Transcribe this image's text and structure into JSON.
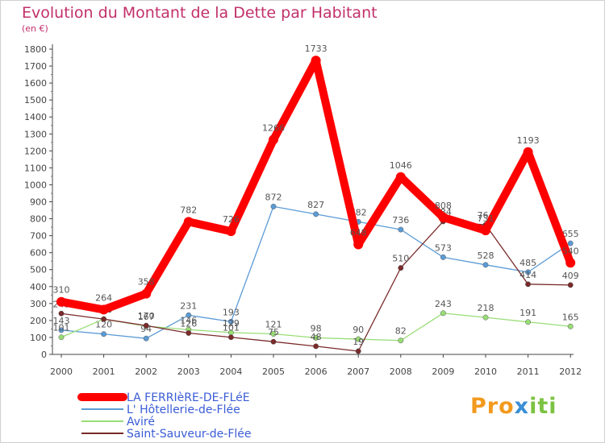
{
  "chart_data": {
    "type": "line",
    "title": "Evolution du Montant de la Dette par Habitant",
    "subtitle": "(en €)",
    "xlabel": "",
    "ylabel": "",
    "x": [
      "2000",
      "2001",
      "2002",
      "2003",
      "2004",
      "2005",
      "2006",
      "2007",
      "2008",
      "2009",
      "2010",
      "2011",
      "2012"
    ],
    "ylim": [
      0,
      1800
    ],
    "yticks": [
      0,
      100,
      200,
      300,
      400,
      500,
      600,
      700,
      800,
      900,
      1000,
      1100,
      1200,
      1300,
      1400,
      1500,
      1600,
      1700,
      1800
    ],
    "grid": false,
    "legend": "bottom-left",
    "series": [
      {
        "name": "LA FERRIèRE-DE-FLéE",
        "color": "#ff0000",
        "values": [
          310,
          264,
          358,
          782,
          726,
          1266,
          1733,
          648,
          1046,
          808,
          731,
          1193,
          540
        ]
      },
      {
        "name": "L' Hôtellerie-de-Flée",
        "color": "#5b9bd5",
        "values": [
          143,
          120,
          94,
          231,
          193,
          872,
          827,
          782,
          736,
          573,
          528,
          485,
          655
        ]
      },
      {
        "name": "Aviré",
        "color": "#99dd77",
        "values": [
          101,
          208,
          167,
          146,
          129,
          121,
          98,
          90,
          82,
          243,
          218,
          191,
          165
        ]
      },
      {
        "name": "Saint-Sauveur-de-Flée",
        "color": "#7a2a2a",
        "values": [
          241,
          208,
          170,
          126,
          101,
          75,
          48,
          19,
          510,
          784,
          764,
          414,
          409
        ]
      }
    ]
  },
  "brand": {
    "part1": "Pro",
    "part2": "x",
    "part3": "iti"
  }
}
